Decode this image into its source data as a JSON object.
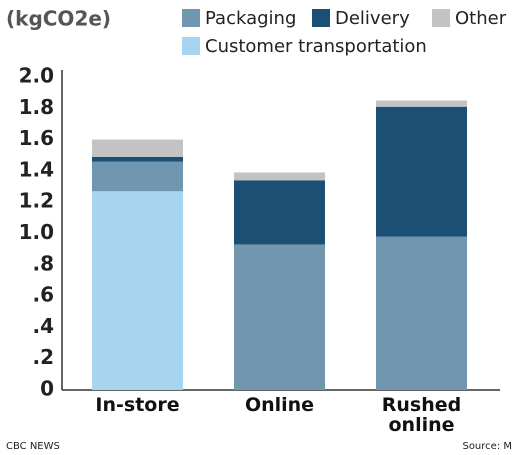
{
  "chart_data": {
    "type": "stacked_bar",
    "unit_label": "(kgCO2e)",
    "categories": [
      "In-store",
      "Online",
      "Rushed online"
    ],
    "series": [
      {
        "name": "Customer transportation",
        "color": "#a7d5ef",
        "values": [
          1.27,
          0,
          0
        ]
      },
      {
        "name": "Packaging",
        "color": "#7096b0",
        "values": [
          0.19,
          0.93,
          0.98
        ]
      },
      {
        "name": "Delivery",
        "color": "#1b4f74",
        "values": [
          0.03,
          0.41,
          0.83
        ]
      },
      {
        "name": "Other",
        "color": "#c3c3c3",
        "values": [
          0.11,
          0.05,
          0.04
        ]
      }
    ],
    "ylim": [
      0,
      2
    ],
    "yticks": [
      0,
      {
        "value": 0.2,
        "label": ".2"
      },
      {
        "value": 0.4,
        "label": ".4"
      },
      {
        "value": 0.6,
        "label": ".6"
      },
      {
        "value": 0.8,
        "label": ".8"
      },
      {
        "value": 1,
        "label": "1.0"
      },
      1.2,
      1.4,
      1.6,
      1.8,
      {
        "value": 2,
        "label": "2.0"
      }
    ],
    "grid": false,
    "source": "Source: M",
    "credit": "CBC NEWS"
  }
}
